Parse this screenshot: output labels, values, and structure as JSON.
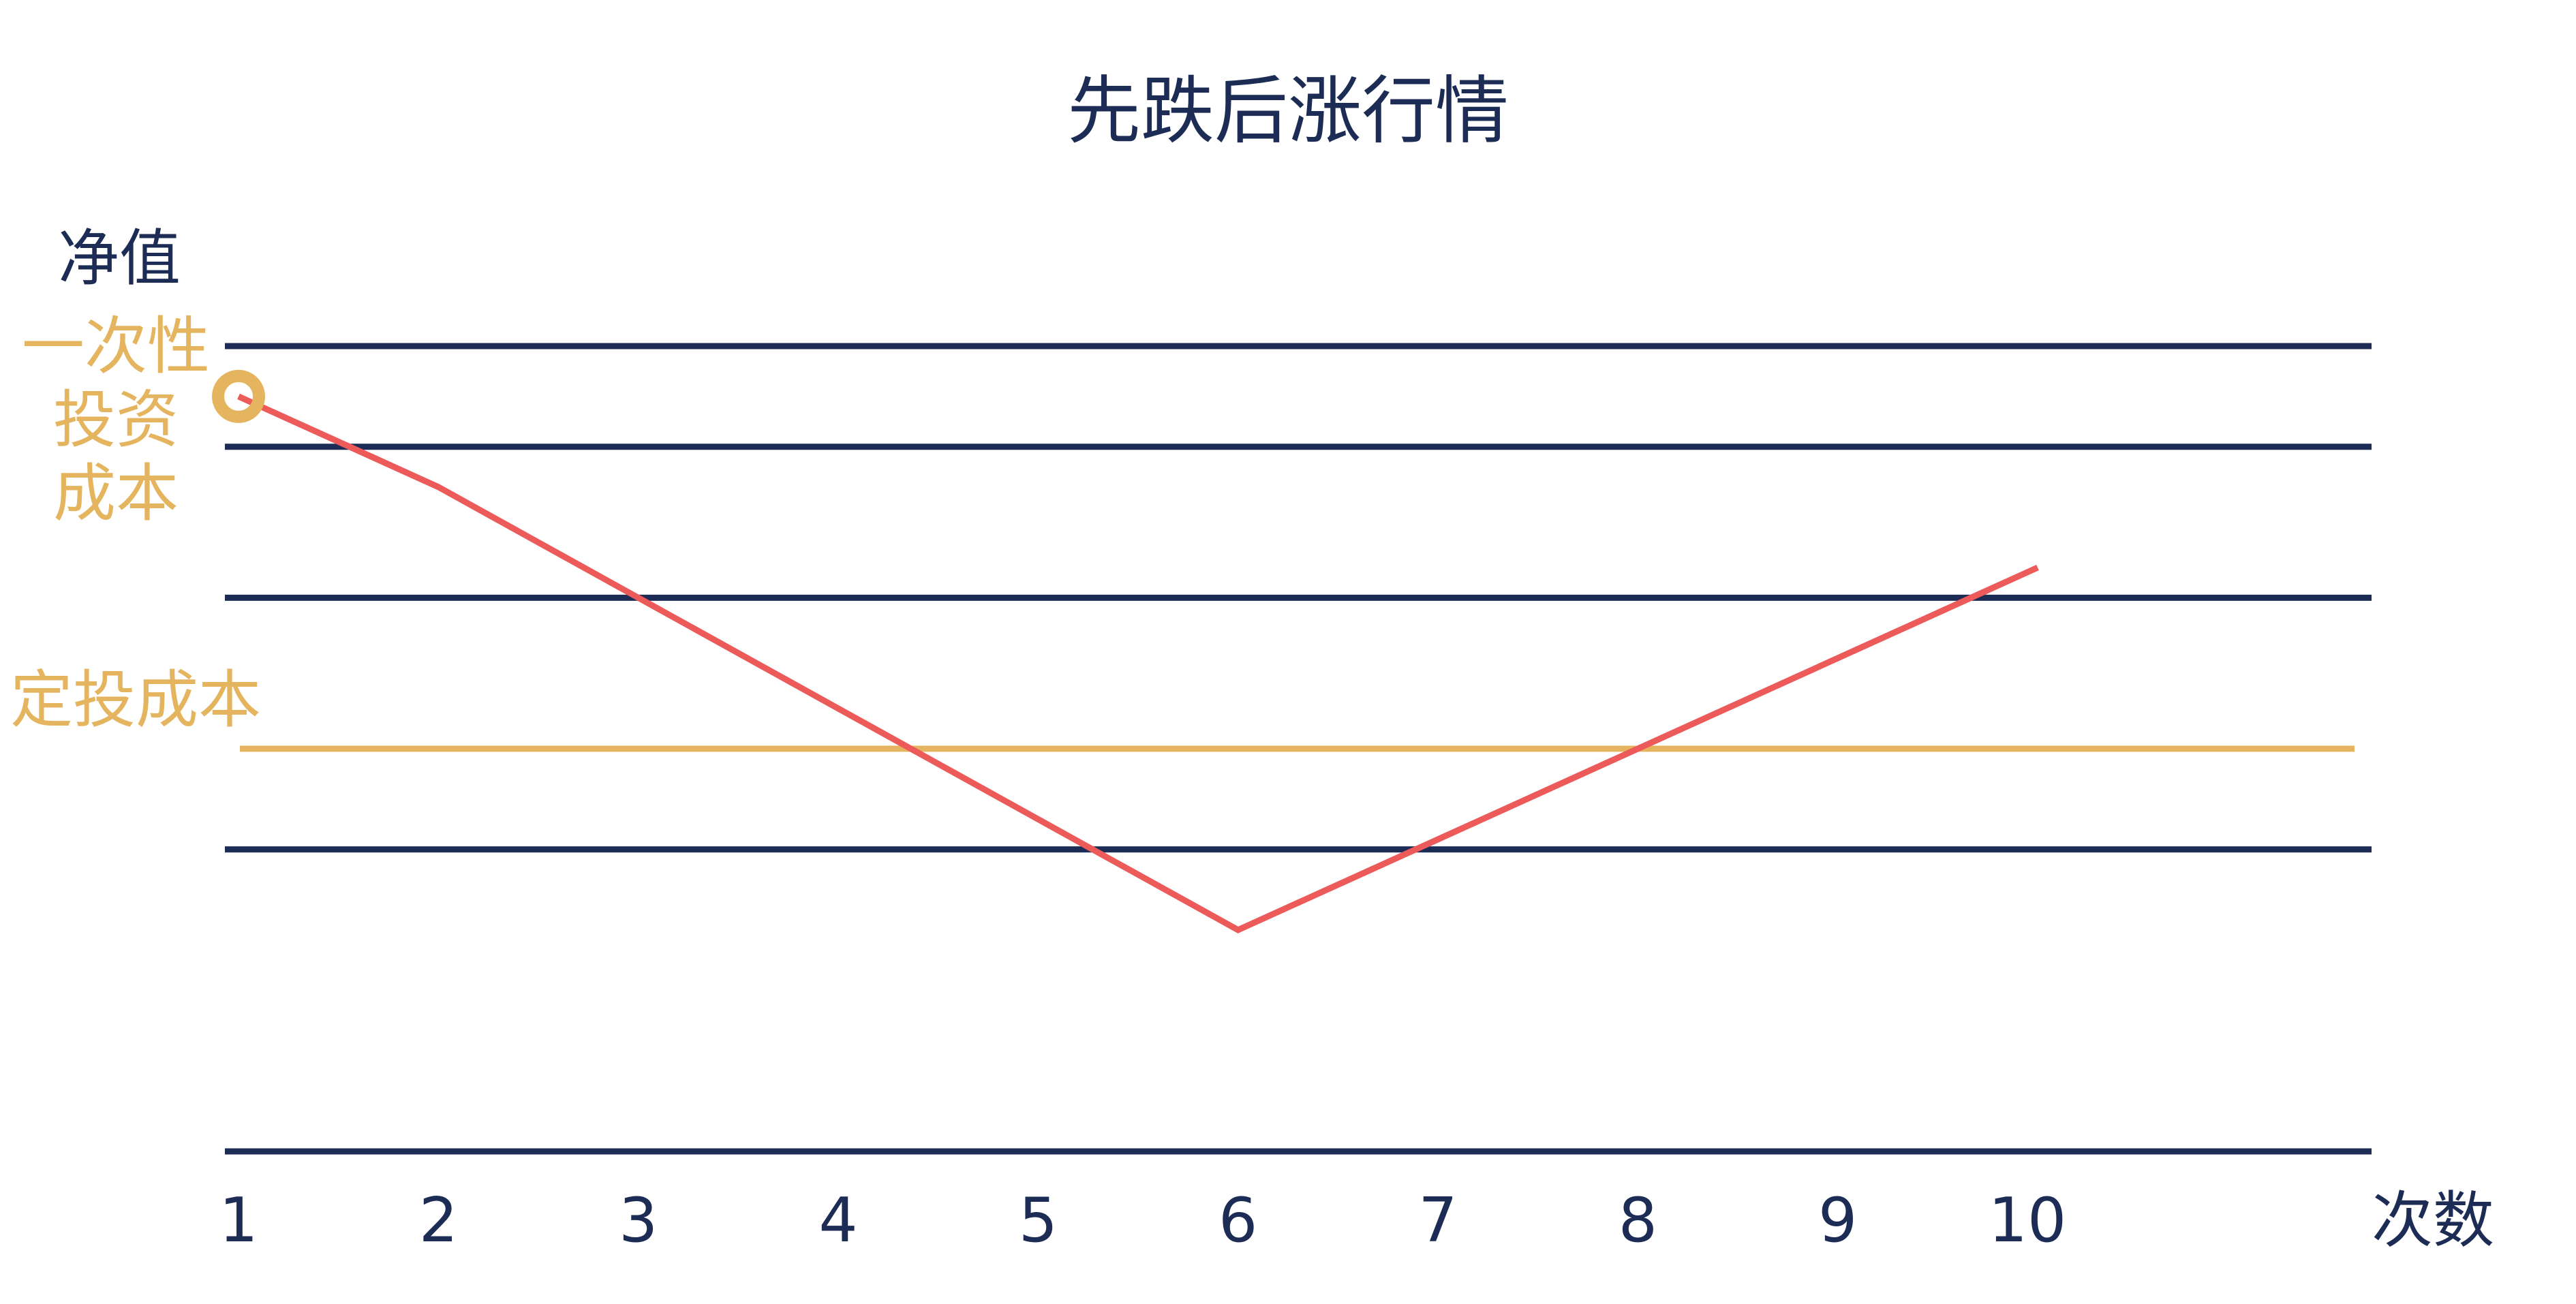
{
  "chart_data": {
    "type": "line",
    "title": "先跌后涨行情",
    "ylabel": "净值",
    "xlabel": "次数",
    "categories": [
      "1",
      "2",
      "3",
      "4",
      "5",
      "6",
      "7",
      "8",
      "9",
      "10"
    ],
    "series": [
      {
        "values": [
          10.5,
          9.6,
          8.5,
          7.4,
          6.3,
          5.2,
          6.1,
          7.0,
          7.9,
          8.8
        ]
      }
    ],
    "reference_lines": [
      {
        "label": "一次性投资成本",
        "value": 10.5,
        "marker": "circle"
      },
      {
        "label": "定投成本",
        "value": 7.0
      }
    ],
    "ylim": [
      3,
      11
    ],
    "grid": true,
    "gridlines": [
      11,
      10,
      8.5,
      6,
      3
    ],
    "colors": {
      "series": "#ec5a59",
      "grid": "#1c2c55",
      "reference": "#e5b45f",
      "text": "#1c2c55"
    }
  }
}
